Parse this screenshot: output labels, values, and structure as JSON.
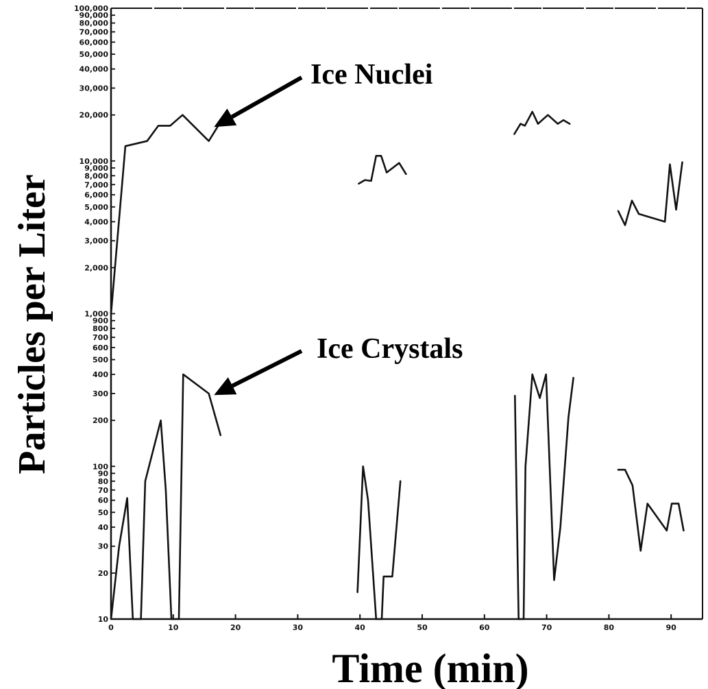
{
  "chart_data": {
    "type": "line",
    "title": "",
    "xlabel": "Time (min)",
    "ylabel": "Particles per Liter",
    "xlim": [
      0,
      95
    ],
    "ylim": [
      10,
      100000
    ],
    "y_scale": "log",
    "grid": false,
    "x_ticks": [
      0,
      10,
      20,
      30,
      40,
      50,
      60,
      70,
      80,
      90
    ],
    "y_major_ticks": [
      {
        "value": 10,
        "label": "10"
      },
      {
        "value": 20,
        "label": "20"
      },
      {
        "value": 30,
        "label": "30"
      },
      {
        "value": 40,
        "label": "40"
      },
      {
        "value": 50,
        "label": "50"
      },
      {
        "value": 60,
        "label": "60"
      },
      {
        "value": 70,
        "label": "70"
      },
      {
        "value": 80,
        "label": "80"
      },
      {
        "value": 90,
        "label": "90"
      },
      {
        "value": 100,
        "label": "100"
      },
      {
        "value": 200,
        "label": "200"
      },
      {
        "value": 300,
        "label": "300"
      },
      {
        "value": 400,
        "label": "400"
      },
      {
        "value": 500,
        "label": "500"
      },
      {
        "value": 600,
        "label": "600"
      },
      {
        "value": 700,
        "label": "700"
      },
      {
        "value": 800,
        "label": "800"
      },
      {
        "value": 900,
        "label": "900"
      },
      {
        "value": 1000,
        "label": "1,000"
      },
      {
        "value": 2000,
        "label": "2,000"
      },
      {
        "value": 3000,
        "label": "3,000"
      },
      {
        "value": 4000,
        "label": "4,000"
      },
      {
        "value": 5000,
        "label": "5,000"
      },
      {
        "value": 6000,
        "label": "6,000"
      },
      {
        "value": 7000,
        "label": "7,000"
      },
      {
        "value": 8000,
        "label": "8,000"
      },
      {
        "value": 9000,
        "label": "9,000"
      },
      {
        "value": 10000,
        "label": "10,000"
      },
      {
        "value": 20000,
        "label": "20,000"
      },
      {
        "value": 30000,
        "label": "30,000"
      },
      {
        "value": 40000,
        "label": "40,000"
      },
      {
        "value": 50000,
        "label": "50,000"
      },
      {
        "value": 60000,
        "label": "60,000"
      },
      {
        "value": 70000,
        "label": "70,000"
      },
      {
        "value": 80000,
        "label": "80,000"
      },
      {
        "value": 90000,
        "label": "90,000"
      },
      {
        "value": 100000,
        "label": "100,000"
      }
    ],
    "annotations": [
      {
        "text": "Ice Nuclei",
        "points_to": {
          "x": 16,
          "y": 16500
        }
      },
      {
        "text": "Ice Crystals",
        "points_to": {
          "x": 16,
          "y": 290
        }
      }
    ],
    "series": [
      {
        "segments": [
          [
            [
              0,
              1000
            ],
            [
              2.3,
              12500
            ],
            [
              5.8,
              13500
            ],
            [
              7.6,
              17000
            ],
            [
              9.5,
              17000
            ],
            [
              11.5,
              20000
            ],
            [
              15.7,
              13500
            ],
            [
              17.6,
              18000
            ]
          ],
          [
            [
              39.8,
              7100
            ],
            [
              40.8,
              7500
            ],
            [
              41.8,
              7400
            ],
            [
              42.6,
              10800
            ],
            [
              43.4,
              10800
            ],
            [
              44.3,
              8400
            ],
            [
              46.3,
              9700
            ],
            [
              47.4,
              8200
            ]
          ],
          [
            [
              64.8,
              15000
            ],
            [
              65.8,
              17500
            ],
            [
              66.5,
              17000
            ],
            [
              67.7,
              21000
            ],
            [
              68.6,
              17500
            ],
            [
              70.2,
              20000
            ],
            [
              71.8,
              17500
            ],
            [
              72.7,
              18500
            ],
            [
              73.7,
              17500
            ]
          ],
          [
            [
              81.5,
              4700
            ],
            [
              82.6,
              3800
            ],
            [
              83.7,
              5500
            ],
            [
              84.8,
              4500
            ],
            [
              89,
              4000
            ],
            [
              89.8,
              9500
            ],
            [
              90.8,
              4800
            ],
            [
              91.8,
              9800
            ]
          ]
        ]
      },
      {
        "segments": [
          [
            [
              0,
              10
            ],
            [
              1.3,
              30
            ],
            [
              2.6,
              62
            ],
            [
              3.5,
              10
            ],
            [
              4.8,
              10
            ],
            [
              5.5,
              80
            ],
            [
              8,
              200
            ],
            [
              8.8,
              70
            ],
            [
              9.7,
              10
            ],
            [
              10.9,
              10
            ],
            [
              11.6,
              400
            ],
            [
              15.7,
              300
            ],
            [
              17.6,
              160
            ]
          ],
          [
            [
              39.6,
              15
            ],
            [
              40.5,
              100
            ],
            [
              41.3,
              60
            ],
            [
              42.6,
              10
            ],
            [
              43.5,
              10
            ],
            [
              43.8,
              19
            ],
            [
              45.2,
              19
            ],
            [
              46.5,
              80
            ]
          ],
          [
            [
              64.9,
              290
            ],
            [
              65.5,
              10
            ],
            [
              66.3,
              10
            ],
            [
              66.6,
              100
            ],
            [
              67.7,
              400
            ],
            [
              68.9,
              280
            ],
            [
              69.9,
              400
            ],
            [
              71.2,
              18
            ],
            [
              72.2,
              40
            ],
            [
              73.5,
              210
            ],
            [
              74.3,
              380
            ]
          ],
          [
            [
              81.5,
              95
            ],
            [
              82.6,
              95
            ],
            [
              83.8,
              75
            ],
            [
              85.1,
              28
            ],
            [
              86.2,
              57
            ],
            [
              89.3,
              38
            ],
            [
              90.1,
              57
            ],
            [
              91.2,
              57
            ],
            [
              92,
              38
            ]
          ]
        ]
      }
    ]
  }
}
